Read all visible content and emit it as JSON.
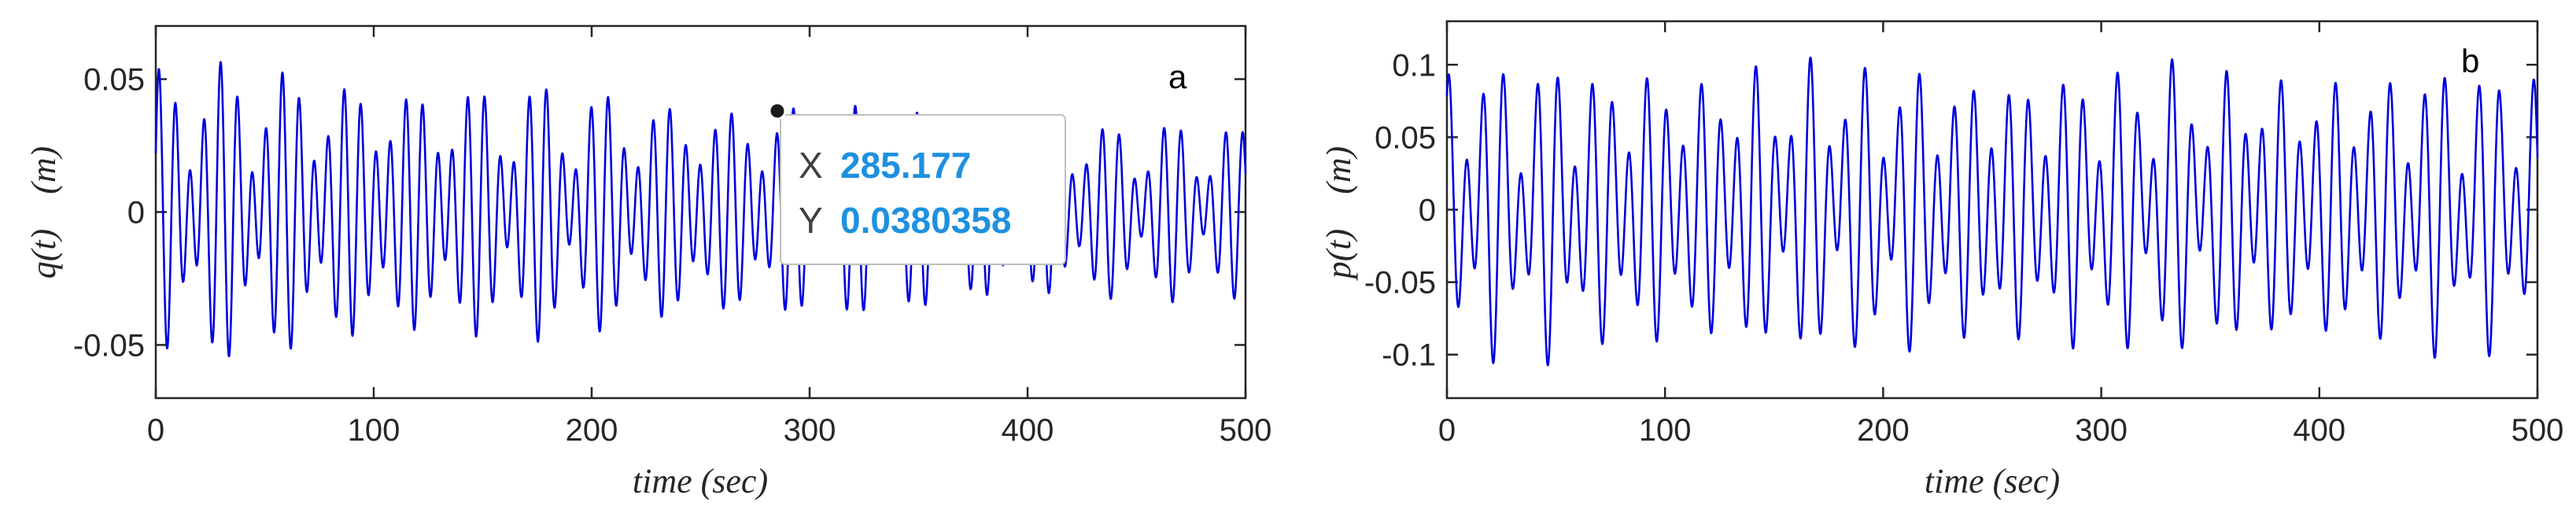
{
  "chart_data": [
    {
      "type": "line",
      "panel_label": "a",
      "xlabel": "time (sec)",
      "ylabel": "q(t)    (m)",
      "xlim": [
        0,
        500
      ],
      "ylim": [
        -0.07,
        0.07
      ],
      "xticks": [
        0,
        100,
        200,
        300,
        400,
        500
      ],
      "xtick_labels": [
        "0",
        "100",
        "200",
        "300",
        "400",
        "500"
      ],
      "yticks": [
        -0.05,
        0,
        0.05
      ],
      "ytick_labels": [
        "-0.05",
        "0",
        "0.05"
      ],
      "grid": false,
      "series": [
        {
          "color": "#0000dd",
          "description": "oscillating displacement q(t), amplitude about 0.06 m decreasing to about 0.035 m",
          "x": [
            0,
            10,
            20,
            30,
            40,
            50,
            60,
            70,
            80,
            90,
            100,
            110,
            120,
            130,
            140,
            150,
            160,
            170,
            180,
            190,
            200,
            210,
            220,
            230,
            240,
            250,
            260,
            270,
            280,
            290,
            300,
            310,
            320,
            330,
            340,
            350,
            360,
            370,
            380,
            390,
            400,
            410,
            420,
            430,
            440,
            450,
            460,
            470,
            480,
            490,
            500
          ],
          "envelope_max": [
            0.058,
            0.058,
            0.057,
            0.057,
            0.056,
            0.056,
            0.055,
            0.055,
            0.054,
            0.054,
            0.053,
            0.052,
            0.052,
            0.051,
            0.051,
            0.05,
            0.05,
            0.049,
            0.049,
            0.048,
            0.047,
            0.047,
            0.046,
            0.046,
            0.045,
            0.044,
            0.044,
            0.043,
            0.043,
            0.042,
            0.041,
            0.041,
            0.04,
            0.04,
            0.039,
            0.039,
            0.038,
            0.038,
            0.037,
            0.037,
            0.036,
            0.036,
            0.036,
            0.035,
            0.035,
            0.035,
            0.034,
            0.034,
            0.034,
            0.034,
            0.034
          ]
        }
      ],
      "datatip": {
        "x_key": "X",
        "x_value": "285.177",
        "y_key": "Y",
        "y_value": "0.0380358",
        "x": 285.177,
        "y": 0.0380358
      }
    },
    {
      "type": "line",
      "panel_label": "b",
      "xlabel": "time (sec)",
      "ylabel": "p(t)    (m)",
      "xlim": [
        0,
        500
      ],
      "ylim": [
        -0.13,
        0.13
      ],
      "xticks": [
        0,
        100,
        200,
        300,
        400,
        500
      ],
      "xtick_labels": [
        "0",
        "100",
        "200",
        "300",
        "400",
        "500"
      ],
      "yticks": [
        -0.1,
        -0.05,
        0,
        0.05,
        0.1
      ],
      "ytick_labels": [
        "-0.1",
        "-0.05",
        "0",
        "0.05",
        "0.1"
      ],
      "grid": false,
      "series": [
        {
          "color": "#0000dd",
          "description": "oscillating displacement p(t), amplitude about 0.11 m",
          "x": [
            0,
            10,
            20,
            30,
            40,
            50,
            60,
            70,
            80,
            90,
            100,
            110,
            120,
            130,
            140,
            150,
            160,
            170,
            180,
            190,
            200,
            210,
            220,
            230,
            240,
            250,
            260,
            270,
            280,
            290,
            300,
            310,
            320,
            330,
            340,
            350,
            360,
            370,
            380,
            390,
            400,
            410,
            420,
            430,
            440,
            450,
            460,
            470,
            480,
            490,
            500
          ],
          "envelope_max": [
            0.105,
            0.108,
            0.11,
            0.1,
            0.105,
            0.11,
            0.108,
            0.1,
            0.105,
            0.11,
            0.108,
            0.1,
            0.105,
            0.108,
            0.11,
            0.1,
            0.104,
            0.108,
            0.11,
            0.1,
            0.104,
            0.108,
            0.106,
            0.1,
            0.104,
            0.108,
            0.106,
            0.1,
            0.104,
            0.106,
            0.106,
            0.1,
            0.103,
            0.106,
            0.105,
            0.1,
            0.103,
            0.106,
            0.105,
            0.1,
            0.103,
            0.105,
            0.104,
            0.1,
            0.103,
            0.105,
            0.104,
            0.1,
            0.102,
            0.104,
            0.103
          ]
        }
      ]
    }
  ]
}
